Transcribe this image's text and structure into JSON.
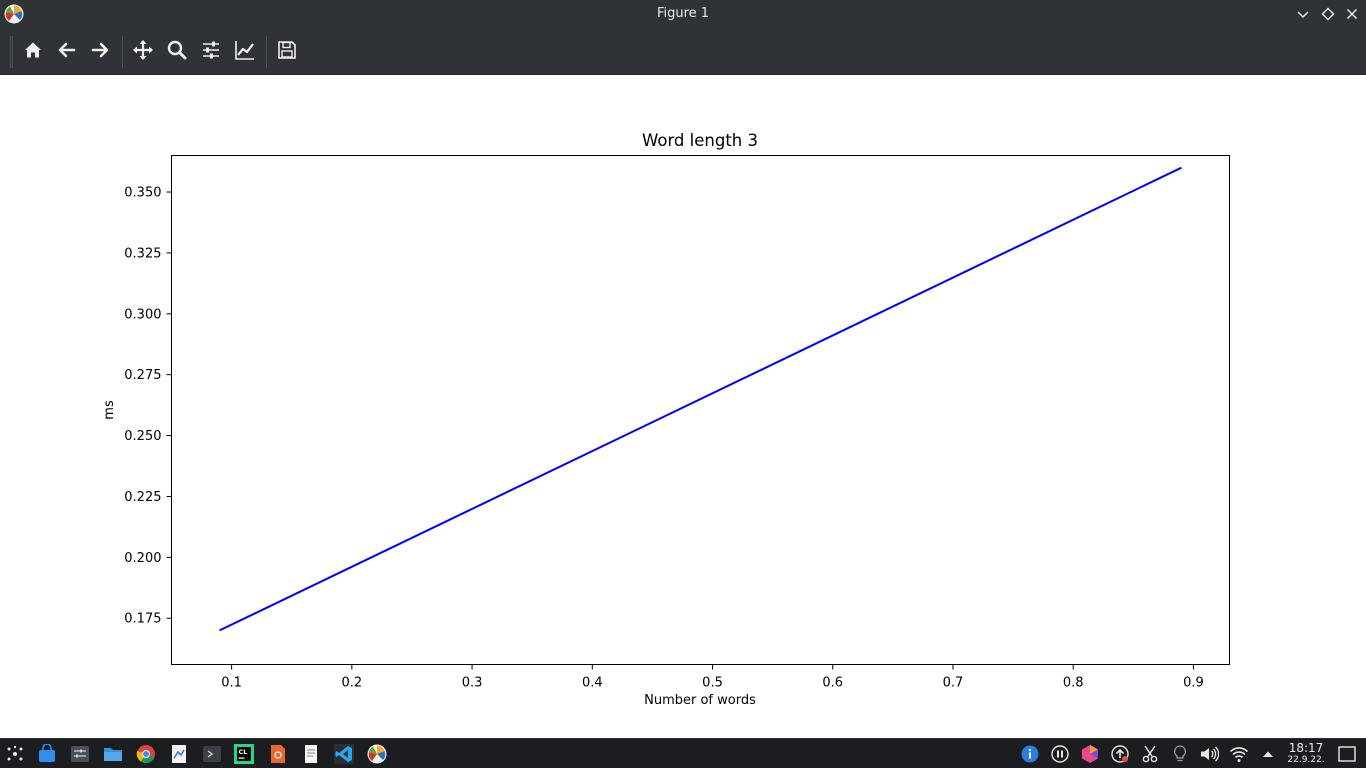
{
  "window": {
    "title": "Figure 1",
    "app_icon": "matplotlib-icon",
    "controls": [
      "minimize-icon",
      "maximize-icon",
      "close-icon"
    ]
  },
  "toolbar": {
    "buttons": [
      {
        "name": "home",
        "icon": "home-icon"
      },
      {
        "name": "back",
        "icon": "arrow-left-icon"
      },
      {
        "name": "forward",
        "icon": "arrow-right-icon"
      },
      {
        "name": "pan",
        "icon": "move-icon"
      },
      {
        "name": "zoom",
        "icon": "zoom-icon"
      },
      {
        "name": "configure-subplots",
        "icon": "sliders-icon"
      },
      {
        "name": "edit-axis",
        "icon": "line-chart-icon"
      },
      {
        "name": "save",
        "icon": "save-icon"
      }
    ]
  },
  "chart_data": {
    "type": "line",
    "title": "Word length 3",
    "xlabel": "Number of words",
    "ylabel": "ms",
    "xlim": [
      0.05,
      0.93
    ],
    "ylim": [
      0.156,
      0.365
    ],
    "xticks": [
      "0.1",
      "0.2",
      "0.3",
      "0.4",
      "0.5",
      "0.6",
      "0.7",
      "0.8",
      "0.9"
    ],
    "yticks": [
      "0.175",
      "0.200",
      "0.225",
      "0.250",
      "0.275",
      "0.300",
      "0.325",
      "0.350"
    ],
    "grid": false,
    "series": [
      {
        "color": "#0000ff",
        "x": [
          0.09,
          0.89
        ],
        "y": [
          0.17,
          0.36
        ]
      }
    ]
  },
  "taskbar": {
    "items": [
      "app-launcher-icon",
      "software-center-icon",
      "system-settings-icon",
      "file-manager-icon",
      "chrome-icon",
      "document-viewer-icon",
      "terminal-icon",
      "clion-icon",
      "presentation-icon",
      "text-editor-icon",
      "vscode-icon",
      "matplotlib-icon"
    ],
    "tray": [
      "info-icon",
      "pause-icon",
      "color-picker-icon",
      "updates-icon",
      "scissors-icon",
      "bulb-icon",
      "volume-icon",
      "wifi-icon",
      "tray-expand-icon"
    ],
    "clock": {
      "time": "18:17",
      "date": "22.9.22."
    },
    "show_desktop": "show-desktop-icon"
  }
}
